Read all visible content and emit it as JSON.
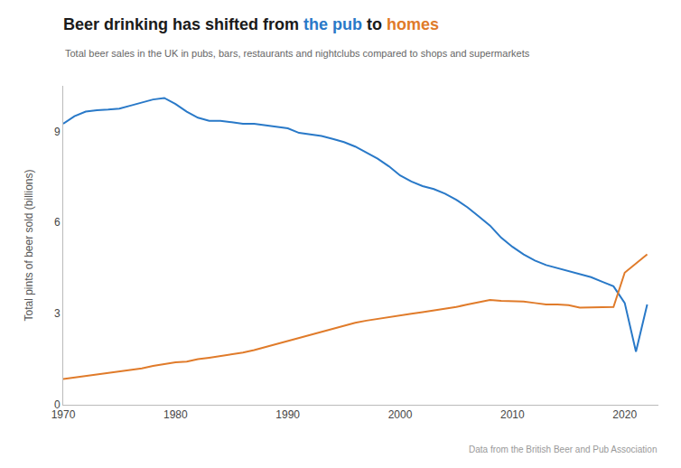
{
  "chart_data": {
    "type": "line",
    "title": "Beer drinking has shifted from the pub to homes",
    "subtitle": "Total beer sales in the UK in pubs, bars, restaurants and nightclubs compared to shops and supermarkets",
    "y_label": "Total pints of beer sold (billions)",
    "annotations": [
      "Data from the British Beer and Pub Association"
    ],
    "x": [
      1970,
      1971,
      1972,
      1973,
      1974,
      1975,
      1976,
      1977,
      1978,
      1979,
      1980,
      1981,
      1982,
      1983,
      1984,
      1985,
      1986,
      1987,
      1988,
      1989,
      1990,
      1991,
      1992,
      1993,
      1994,
      1995,
      1996,
      1997,
      1998,
      1999,
      2000,
      2001,
      2002,
      2003,
      2004,
      2005,
      2006,
      2007,
      2008,
      2009,
      2010,
      2011,
      2012,
      2013,
      2014,
      2015,
      2016,
      2017,
      2018,
      2019,
      2020,
      2021,
      2022
    ],
    "series": [
      {
        "name": "the pub",
        "color": "#2979c8",
        "values": [
          9.25,
          9.5,
          9.65,
          9.7,
          9.72,
          9.75,
          9.85,
          9.95,
          10.05,
          10.1,
          9.9,
          9.65,
          9.45,
          9.35,
          9.35,
          9.3,
          9.25,
          9.25,
          9.2,
          9.15,
          9.1,
          8.95,
          8.9,
          8.85,
          8.75,
          8.65,
          8.5,
          8.3,
          8.1,
          7.85,
          7.55,
          7.35,
          7.2,
          7.1,
          6.95,
          6.75,
          6.5,
          6.2,
          5.9,
          5.5,
          5.2,
          4.95,
          4.75,
          4.6,
          4.5,
          4.4,
          4.3,
          4.2,
          4.05,
          3.9,
          3.35,
          1.75,
          3.3
        ]
      },
      {
        "name": "homes",
        "color": "#e07b2a",
        "values": [
          0.85,
          0.9,
          0.95,
          1.0,
          1.05,
          1.1,
          1.15,
          1.2,
          1.28,
          1.35,
          1.4,
          1.42,
          1.5,
          1.55,
          1.6,
          1.65,
          1.72,
          1.8,
          1.9,
          2.0,
          2.1,
          2.2,
          2.3,
          2.42,
          2.52,
          2.62,
          2.7,
          2.77,
          2.83,
          2.9,
          2.95,
          3.0,
          3.05,
          3.1,
          3.15,
          3.22,
          3.3,
          3.38,
          3.45,
          3.42,
          3.4,
          3.4,
          3.35,
          3.3,
          3.3,
          3.28,
          3.2,
          3.2,
          3.2,
          3.22,
          4.35,
          4.65,
          4.95
        ]
      }
    ],
    "xlim": [
      1970,
      2023
    ],
    "xticks": [
      1970,
      1980,
      1990,
      2000,
      2010,
      2020
    ],
    "ylim": [
      0,
      10.5
    ],
    "yticks": [
      0,
      3,
      6,
      9
    ],
    "grid": false
  }
}
